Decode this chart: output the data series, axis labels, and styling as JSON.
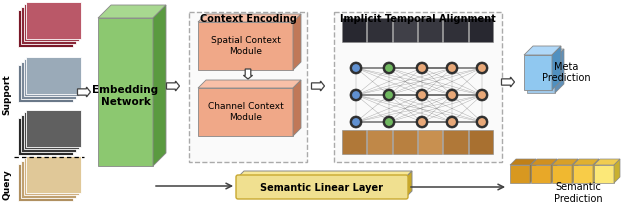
{
  "bg_color": "#ffffff",
  "context_encoding_title": "Context Encoding",
  "implicit_align_title": "Implicit Temporal Alignment",
  "embedding_text": "Embedding\nNetwork",
  "spatial_text": "Spatial Context\nModule",
  "channel_text": "Channel Context\nModule",
  "semantic_layer_text": "Semantic Linear Layer",
  "meta_pred_text": "Meta\nPrediction",
  "semantic_pred_text": "Semantic\nPrediction",
  "support_text": "Support",
  "query_text": "Query",
  "green_face": "#8cc870",
  "green_side": "#5a9a40",
  "green_top": "#a8d890",
  "salmon_face": "#f0a888",
  "salmon_side": "#c07858",
  "salmon_top": "#f8c0a8",
  "blue_face": "#90c8f0",
  "blue_side": "#5090c0",
  "blue_top": "#b0d8f8",
  "yellow_face": "#f0d060",
  "yellow_side": "#b89020",
  "yellow_top": "#f8e080",
  "sem_box_face": "#f0e090",
  "sem_box_edge": "#c8a830",
  "arrow_color": "#404040",
  "node_blue": "#6090d0",
  "node_green": "#70b860",
  "node_peach": "#e8a878",
  "node_black": "#303030"
}
